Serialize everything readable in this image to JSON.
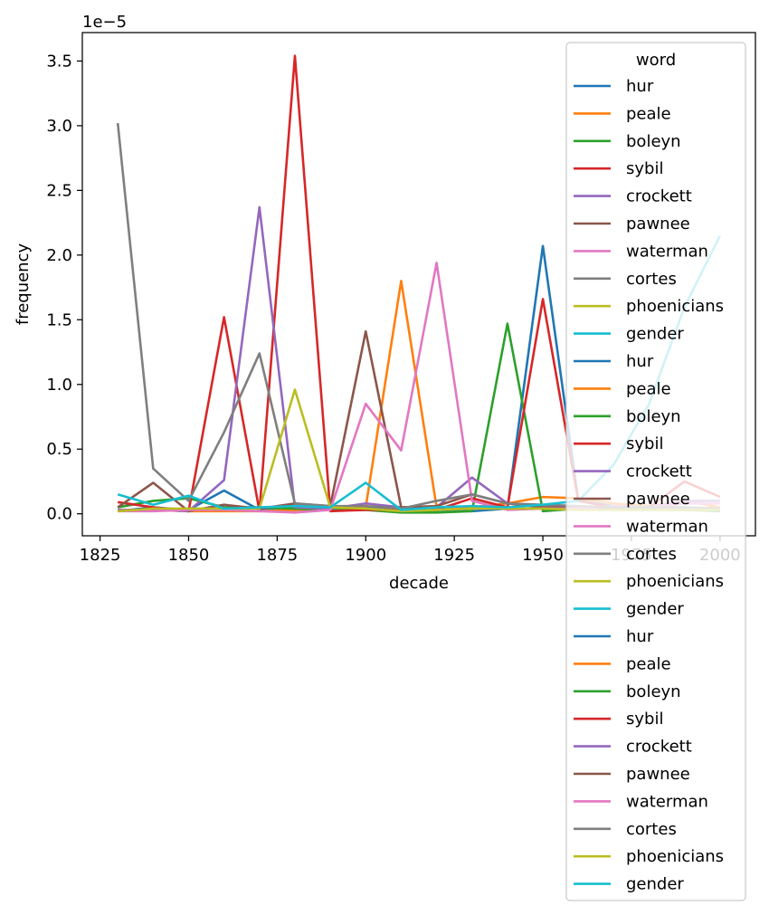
{
  "chart_data": {
    "type": "line",
    "title": "",
    "xlabel": "decade",
    "ylabel": "frequency",
    "y_offset_label": "1e−5",
    "y_scale": 1e-05,
    "xlim": [
      1820,
      2010
    ],
    "ylim": [
      -0.17,
      3.72
    ],
    "x_ticks": [
      1825,
      1850,
      1875,
      1900,
      1925,
      1950,
      1975,
      2000
    ],
    "x_tick_labels": [
      "1825",
      "1850",
      "1875",
      "1900",
      "1925",
      "1950",
      "1975",
      "2000"
    ],
    "y_ticks": [
      0.0,
      0.5,
      1.0,
      1.5,
      2.0,
      2.5,
      3.0,
      3.5
    ],
    "y_tick_labels": [
      "0.0",
      "0.5",
      "1.0",
      "1.5",
      "2.0",
      "2.5",
      "3.0",
      "3.5"
    ],
    "grid": false,
    "legend": {
      "title": "word",
      "placement": "upper-right"
    },
    "x": [
      1830,
      1840,
      1850,
      1860,
      1870,
      1880,
      1890,
      1900,
      1910,
      1920,
      1930,
      1940,
      1950,
      1960,
      1970,
      1980,
      1990,
      2000
    ],
    "series": [
      {
        "name": "hur",
        "color": "#1f77b4",
        "values": [
          0.02,
          0.05,
          0.03,
          0.18,
          0.03,
          0.03,
          0.03,
          0.05,
          0.02,
          0.03,
          0.02,
          0.04,
          2.07,
          0.1,
          0.06,
          0.05,
          0.05,
          0.04
        ]
      },
      {
        "name": "peale",
        "color": "#ff7f0e",
        "values": [
          0.03,
          0.03,
          0.02,
          0.02,
          0.02,
          0.03,
          0.04,
          0.05,
          1.8,
          0.05,
          0.05,
          0.08,
          0.13,
          0.12,
          0.08,
          0.06,
          0.1,
          0.05
        ]
      },
      {
        "name": "boleyn",
        "color": "#2ca02c",
        "values": [
          0.05,
          0.1,
          0.12,
          0.05,
          0.05,
          0.04,
          0.03,
          0.03,
          0.01,
          0.01,
          0.02,
          1.47,
          0.02,
          0.04,
          0.03,
          0.03,
          0.03,
          0.02
        ]
      },
      {
        "name": "sybil",
        "color": "#d62728",
        "values": [
          0.09,
          0.05,
          0.02,
          1.52,
          0.02,
          3.54,
          0.02,
          0.03,
          0.03,
          0.03,
          0.12,
          0.05,
          1.66,
          0.1,
          0.05,
          0.05,
          0.25,
          0.13
        ]
      },
      {
        "name": "crockett",
        "color": "#9467bd",
        "values": [
          0.03,
          0.03,
          0.02,
          0.26,
          2.37,
          0.05,
          0.04,
          0.08,
          0.05,
          0.05,
          0.28,
          0.08,
          0.05,
          0.05,
          0.05,
          0.05,
          0.1,
          0.1
        ]
      },
      {
        "name": "pawnee",
        "color": "#8c564b",
        "values": [
          0.05,
          0.24,
          0.02,
          0.07,
          0.04,
          0.08,
          0.06,
          1.41,
          0.05,
          0.06,
          0.15,
          0.08,
          0.05,
          0.05,
          0.04,
          0.04,
          0.03,
          0.03
        ]
      },
      {
        "name": "waterman",
        "color": "#e377c2",
        "values": [
          0.02,
          0.02,
          0.03,
          0.03,
          0.02,
          0.01,
          0.03,
          0.85,
          0.49,
          1.94,
          0.1,
          0.03,
          0.04,
          0.04,
          0.06,
          0.05,
          0.08,
          0.08
        ]
      },
      {
        "name": "cortes",
        "color": "#7f7f7f",
        "values": [
          3.02,
          0.35,
          0.1,
          0.63,
          1.24,
          0.08,
          0.06,
          0.06,
          0.04,
          0.1,
          0.15,
          0.08,
          0.07,
          0.06,
          0.05,
          0.05,
          0.05,
          0.04
        ]
      },
      {
        "name": "phoenicians",
        "color": "#bcbd22",
        "values": [
          0.02,
          0.04,
          0.04,
          0.04,
          0.04,
          0.96,
          0.05,
          0.04,
          0.02,
          0.03,
          0.04,
          0.04,
          0.04,
          0.03,
          0.03,
          0.03,
          0.03,
          0.03
        ]
      },
      {
        "name": "gender",
        "color": "#17becf",
        "values": [
          0.15,
          0.07,
          0.14,
          0.04,
          0.05,
          0.06,
          0.05,
          0.24,
          0.03,
          0.05,
          0.06,
          0.05,
          0.07,
          0.1,
          0.38,
          0.85,
          1.6,
          2.15
        ]
      }
    ],
    "legend_entries": [
      "hur",
      "peale",
      "boleyn",
      "sybil",
      "crockett",
      "pawnee",
      "waterman",
      "cortes",
      "phoenicians",
      "gender",
      "hur",
      "peale",
      "boleyn",
      "sybil",
      "crockett",
      "pawnee",
      "waterman",
      "cortes",
      "phoenicians",
      "gender",
      "hur",
      "peale",
      "boleyn",
      "sybil",
      "crockett",
      "pawnee",
      "waterman",
      "cortes",
      "phoenicians",
      "gender"
    ]
  }
}
